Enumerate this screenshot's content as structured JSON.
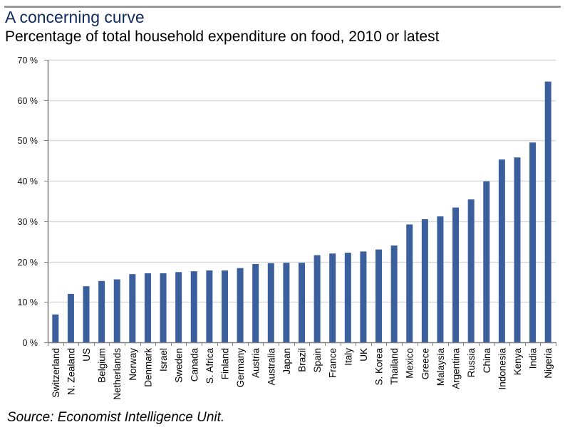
{
  "header": {
    "title": "A concerning curve",
    "subtitle": "Percentage of total household expenditure on food, 2010 or latest"
  },
  "footer": {
    "source": "Source: Economist Intelligence Unit."
  },
  "colors": {
    "bar": "#3b5f9c",
    "gridline": "#d9d9d9",
    "axis": "#7f7f7f",
    "title": "#0f2a5c",
    "rule": "#9a9a9a"
  },
  "chart_data": {
    "type": "bar",
    "title": "A concerning curve",
    "subtitle": "Percentage of total household expenditure on food, 2010 or latest",
    "xlabel": "",
    "ylabel": "",
    "ylim": [
      0,
      70
    ],
    "yticks": [
      0,
      10,
      20,
      30,
      40,
      50,
      60,
      70
    ],
    "ytick_labels": [
      "0 %",
      "10 %",
      "20 %",
      "30 %",
      "40 %",
      "50 %",
      "60 %",
      "70 %"
    ],
    "grid": true,
    "legend": "none",
    "categories": [
      "Switzerland",
      "N. Zealand",
      "US",
      "Belgium",
      "Netherlands",
      "Norway",
      "Denmark",
      "Israel",
      "Sweden",
      "Canada",
      "S. Africa",
      "Finland",
      "Germany",
      "Austria",
      "Australia",
      "Japan",
      "Brazil",
      "Spain",
      "France",
      "Italy",
      "UK",
      "S. Korea",
      "Thailand",
      "Mexico",
      "Greece",
      "Malaysia",
      "Argentina",
      "Russia",
      "China",
      "Indonesia",
      "Kenya",
      "India",
      "Nigeria"
    ],
    "values": [
      6.9,
      12.0,
      13.9,
      15.2,
      15.6,
      16.9,
      17.1,
      17.1,
      17.4,
      17.6,
      17.8,
      17.8,
      18.4,
      19.4,
      19.6,
      19.7,
      19.7,
      21.6,
      22.0,
      22.2,
      22.5,
      23.0,
      24.0,
      29.2,
      30.5,
      31.2,
      33.4,
      35.4,
      39.9,
      45.3,
      45.8,
      49.5,
      64.6
    ],
    "source": "Source: Economist Intelligence Unit."
  }
}
